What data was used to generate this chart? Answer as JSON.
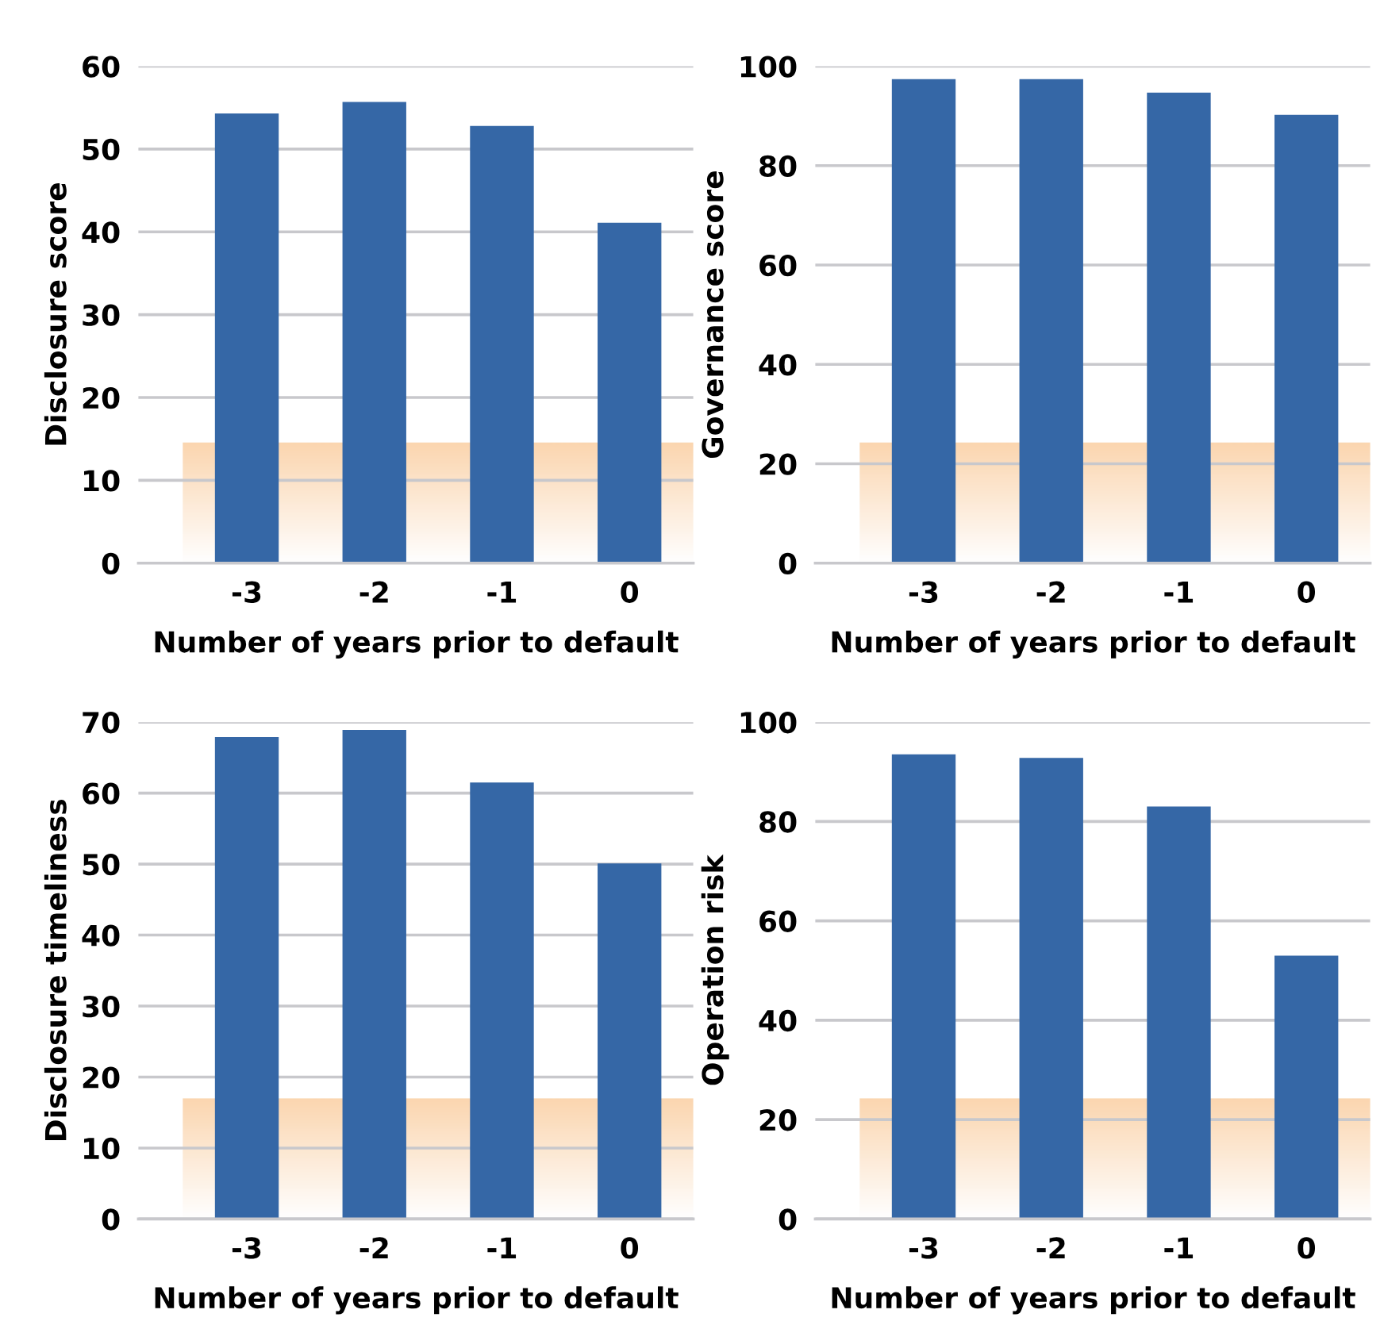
{
  "chart_data": [
    {
      "type": "bar",
      "categories": [
        "-3",
        "-2",
        "-1",
        "0"
      ],
      "values": [
        54.3,
        55.7,
        52.8,
        41.1
      ],
      "color": "#3567a6",
      "xlabel": "Number of years prior to default",
      "ylabel": "Disclosure score",
      "ylim": [
        0,
        60
      ],
      "yticks": [
        0,
        10,
        20,
        30,
        40,
        50,
        60
      ],
      "grid": "y"
    },
    {
      "type": "bar",
      "categories": [
        "-3",
        "-2",
        "-1",
        "0"
      ],
      "values": [
        97.4,
        97.4,
        94.7,
        90.2
      ],
      "color": "#3567a6",
      "xlabel": "Number of years prior to default",
      "ylabel": "Governance score",
      "ylim": [
        0,
        100
      ],
      "yticks": [
        0,
        20,
        40,
        60,
        80,
        100
      ],
      "grid": "y"
    },
    {
      "type": "bar",
      "categories": [
        "-3",
        "-2",
        "-1",
        "0"
      ],
      "values": [
        67.9,
        68.9,
        61.5,
        50.1
      ],
      "color": "#3567a6",
      "xlabel": "Number of years prior to default",
      "ylabel": "Disclosure timeliness",
      "ylim": [
        0,
        70
      ],
      "yticks": [
        0,
        10,
        20,
        30,
        40,
        50,
        60,
        70
      ],
      "grid": "y"
    },
    {
      "type": "bar",
      "categories": [
        "-3",
        "-2",
        "-1",
        "0"
      ],
      "values": [
        93.5,
        92.8,
        83.0,
        53.0
      ],
      "color": "#3567a6",
      "xlabel": "Number of years prior to default",
      "ylabel": "Operation risk",
      "ylim": [
        0,
        100
      ],
      "yticks": [
        0,
        20,
        40,
        60,
        80,
        100
      ],
      "grid": "y"
    }
  ]
}
